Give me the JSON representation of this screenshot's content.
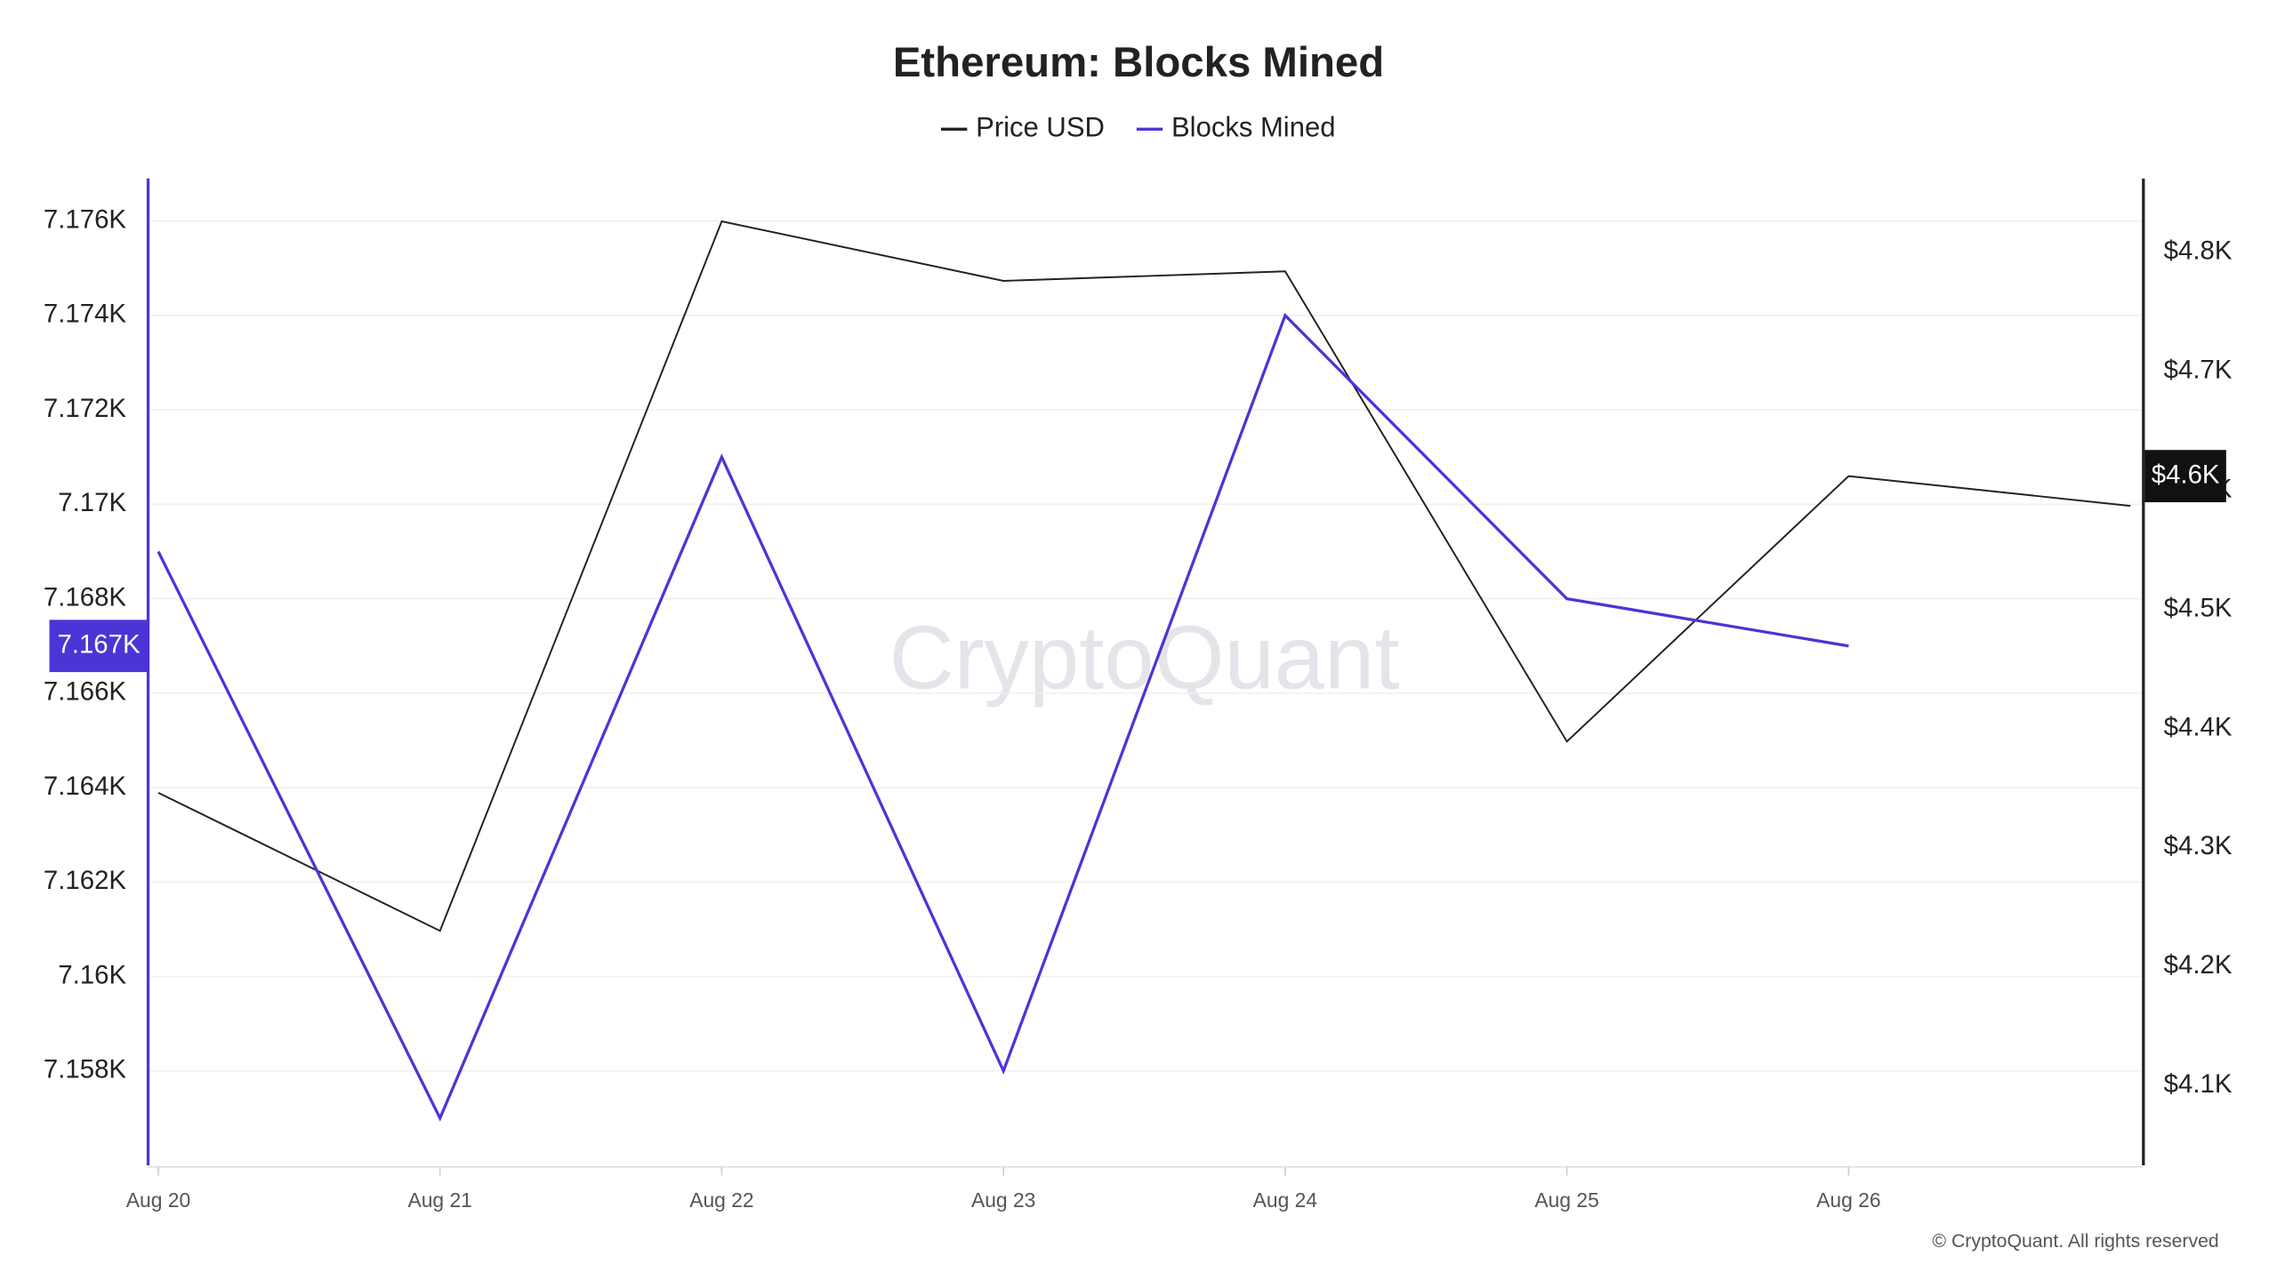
{
  "chart_data": {
    "type": "line",
    "title": "Ethereum: Blocks Mined",
    "categories": [
      "Aug 20",
      "Aug 21",
      "Aug 22",
      "Aug 23",
      "Aug 24",
      "Aug 25",
      "Aug 26",
      null
    ],
    "series": [
      {
        "name": "Price USD",
        "color": "#222222",
        "axis": "y2",
        "values": [
          4346,
          4230,
          4826,
          4776,
          4784,
          4389,
          4612,
          4587
        ]
      },
      {
        "name": "Blocks Mined",
        "color": "#4b35d6",
        "values": [
          7169,
          7157,
          7171,
          7158,
          7174,
          7168,
          7167,
          null
        ]
      }
    ],
    "ylim": [
      7156,
      7176.9
    ],
    "yticks": [
      {
        "value": 7158,
        "label": "7.158K"
      },
      {
        "value": 7160,
        "label": "7.16K"
      },
      {
        "value": 7162,
        "label": "7.162K"
      },
      {
        "value": 7164,
        "label": "7.164K"
      },
      {
        "value": 7166,
        "label": "7.166K"
      },
      {
        "value": 7168,
        "label": "7.168K"
      },
      {
        "value": 7170,
        "label": "7.17K"
      },
      {
        "value": 7172,
        "label": "7.172K"
      },
      {
        "value": 7174,
        "label": "7.174K"
      },
      {
        "value": 7176,
        "label": "7.176K"
      }
    ],
    "y2lim": [
      4033,
      4862
    ],
    "y2ticks": [
      {
        "value": 4100,
        "label": "$4.1K"
      },
      {
        "value": 4200,
        "label": "$4.2K"
      },
      {
        "value": 4300,
        "label": "$4.3K"
      },
      {
        "value": 4400,
        "label": "$4.4K"
      },
      {
        "value": 4500,
        "label": "$4.5K"
      },
      {
        "value": 4600,
        "label": "$4.6K"
      },
      {
        "value": 4700,
        "label": "$4.7K"
      },
      {
        "value": 4800,
        "label": "$4.8K"
      }
    ],
    "y_marker": {
      "value": 7167,
      "label": "7.167K"
    },
    "y2_marker": {
      "value": 4612,
      "label": "$4.6K"
    },
    "grid": true,
    "watermark": "CryptoQuant",
    "footer": "© CryptoQuant. All rights reserved"
  }
}
